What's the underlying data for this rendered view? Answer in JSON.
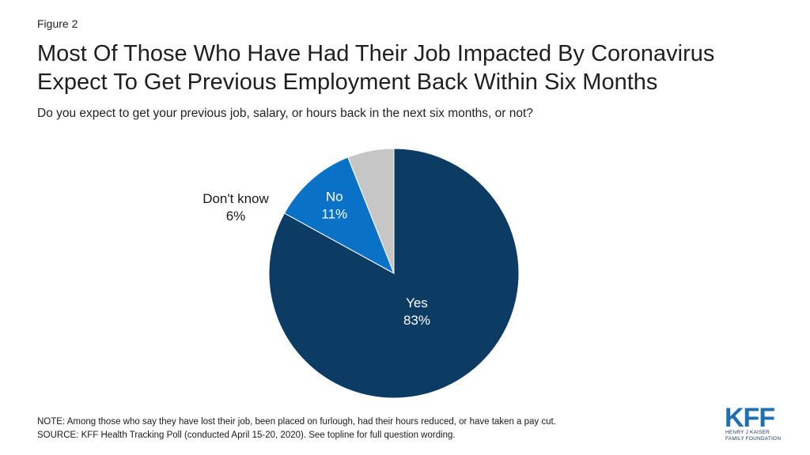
{
  "figure_label": "Figure 2",
  "title_line1": "Most Of Those Who Have Had Their Job Impacted By Coronavirus",
  "title_line2": "Expect To Get Previous Employment Back Within Six Months",
  "subtitle": "Do you expect to get your previous job, salary, or hours back in the next six months, or not?",
  "note": "NOTE: Among those who say they have lost their job, been placed on furlough, had their hours reduced, or have taken a pay cut.",
  "source": "SOURCE: KFF Health Tracking Poll (conducted April 15-20, 2020). See topline for full question wording.",
  "logo": {
    "mark": "KFF",
    "line1": "HENRY J KAISER",
    "line2": "FAMILY FOUNDATION",
    "color": "#1f6fb2"
  },
  "chart_data": {
    "type": "pie",
    "slices": [
      {
        "label": "Yes",
        "value": 83,
        "display": "83%",
        "color": "#0c3b63"
      },
      {
        "label": "No",
        "value": 11,
        "display": "11%",
        "color": "#0a72c6"
      },
      {
        "label": "Don't know",
        "value": 6,
        "display": "6%",
        "color": "#c6c6c6"
      }
    ],
    "start_angle_deg": 0,
    "direction": "clockwise"
  }
}
